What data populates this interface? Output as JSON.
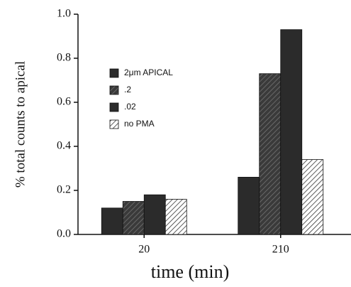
{
  "chart_data": {
    "type": "bar",
    "x_label": "time (min)",
    "y_label": "% total  counts to apical",
    "categories": [
      "20",
      "210"
    ],
    "series": [
      {
        "name": "2μm APICAL",
        "color": "#2b2b2b",
        "hatch": false,
        "values": [
          0.12,
          0.26
        ]
      },
      {
        "name": ".2",
        "color": "#3a3a3a",
        "hatch": true,
        "values": [
          0.15,
          0.73
        ]
      },
      {
        "name": ".02",
        "color": "#2b2b2b",
        "hatch": false,
        "values": [
          0.18,
          0.93
        ]
      },
      {
        "name": "no PMA",
        "color": "#ffffff",
        "hatch": true,
        "values": [
          0.16,
          0.34
        ]
      }
    ],
    "ylim": [
      0,
      1
    ],
    "yticks": [
      {
        "value": 0,
        "label": "0.0"
      },
      0.2,
      0.4,
      0.6,
      0.8,
      {
        "value": 1,
        "label": "1.0"
      }
    ]
  }
}
